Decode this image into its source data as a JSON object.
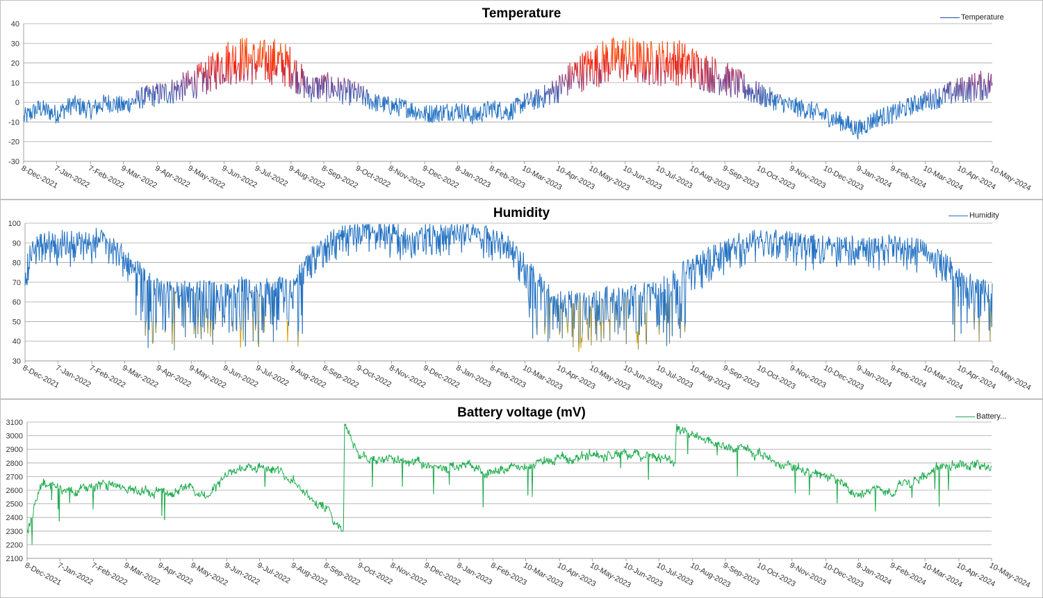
{
  "chart_data": [
    {
      "type": "line",
      "title": "Temperature",
      "legend": "Temperature",
      "legend_position": "top-right",
      "xlabel": "",
      "ylabel": "",
      "ylim": [
        -30,
        40
      ],
      "yticks": [
        -30,
        -20,
        -10,
        0,
        10,
        20,
        30,
        40
      ],
      "grid": true,
      "x_tick_labels": [
        "8-Dec-2021",
        "7-Jan-2022",
        "7-Feb-2022",
        "9-Mar-2022",
        "9-Apr-2022",
        "9-May-2022",
        "9-Jun-2022",
        "9-Jul-2022",
        "9-Aug-2022",
        "8-Sep-2022",
        "9-Oct-2022",
        "8-Nov-2022",
        "9-Dec-2022",
        "8-Jan-2023",
        "8-Feb-2023",
        "10-Mar-2023",
        "10-Apr-2023",
        "10-May-2023",
        "10-Jun-2023",
        "10-Jul-2023",
        "10-Aug-2023",
        "9-Sep-2023",
        "10-Oct-2023",
        "9-Nov-2023",
        "10-Dec-2023",
        "9-Jan-2024",
        "9-Feb-2024",
        "10-Mar-2024",
        "10-Apr-2024",
        "10-May-2024"
      ],
      "color_scale": {
        "low_value": 0,
        "high_value": 20,
        "low_color": "#1f6fc1",
        "mid_color": "#7a3c8a",
        "high_color": "#ff1a00",
        "peak_color": "#e8a317"
      },
      "series": [
        {
          "name": "Temperature",
          "color": "#1f4e9e",
          "x": [
            "2021-12-08",
            "2021-12-22",
            "2022-01-07",
            "2022-01-22",
            "2022-02-07",
            "2022-02-22",
            "2022-03-09",
            "2022-03-24",
            "2022-04-09",
            "2022-04-24",
            "2022-05-09",
            "2022-05-24",
            "2022-06-09",
            "2022-06-24",
            "2022-07-09",
            "2022-07-24",
            "2022-08-09",
            "2022-08-24",
            "2022-09-08",
            "2022-09-24",
            "2022-10-09",
            "2022-10-24",
            "2022-11-08",
            "2022-11-24",
            "2022-12-09",
            "2022-12-24",
            "2023-01-08",
            "2023-01-24",
            "2023-02-08",
            "2023-02-24",
            "2023-03-10",
            "2023-03-25",
            "2023-04-10",
            "2023-04-25",
            "2023-05-10",
            "2023-05-25",
            "2023-06-10",
            "2023-06-25",
            "2023-07-10",
            "2023-07-25",
            "2023-08-10",
            "2023-08-25",
            "2023-09-09",
            "2023-09-25",
            "2023-10-10",
            "2023-10-25",
            "2023-11-09",
            "2023-11-25",
            "2023-12-10",
            "2023-12-25",
            "2024-01-09",
            "2024-01-25",
            "2024-02-09",
            "2024-02-25",
            "2024-03-10",
            "2024-03-25",
            "2024-04-10",
            "2024-04-25",
            "2024-05-10"
          ],
          "values": [
            -8,
            -3,
            -6,
            -1,
            -4,
            0,
            -2,
            2,
            4,
            6,
            9,
            13,
            20,
            22,
            20,
            21,
            18,
            7,
            8,
            6,
            4,
            0,
            -2,
            -3,
            -6,
            -5,
            -4,
            -7,
            -3,
            -5,
            0,
            2,
            7,
            14,
            18,
            21,
            22,
            20,
            20,
            21,
            18,
            15,
            12,
            8,
            4,
            1,
            -2,
            -4,
            -7,
            -10,
            -14,
            -8,
            -6,
            -2,
            1,
            3,
            6,
            8,
            9
          ]
        }
      ]
    },
    {
      "type": "line",
      "title": "Humidity",
      "legend": "Humidity",
      "legend_position": "top-right",
      "xlabel": "",
      "ylabel": "",
      "ylim": [
        30,
        100
      ],
      "yticks": [
        30,
        40,
        50,
        60,
        70,
        80,
        90,
        100
      ],
      "grid": true,
      "x_tick_labels": [
        "8-Dec-2021",
        "7-Jan-2022",
        "7-Feb-2022",
        "9-Mar-2022",
        "9-Apr-2022",
        "9-May-2022",
        "9-Jun-2022",
        "9-Jul-2022",
        "9-Aug-2022",
        "8-Sep-2022",
        "9-Oct-2022",
        "8-Nov-2022",
        "9-Dec-2022",
        "8-Jan-2023",
        "8-Feb-2023",
        "10-Mar-2023",
        "10-Apr-2023",
        "10-May-2023",
        "10-Jun-2023",
        "10-Jul-2023",
        "10-Aug-2023",
        "9-Sep-2023",
        "10-Oct-2023",
        "9-Nov-2023",
        "10-Dec-2023",
        "9-Jan-2024",
        "9-Feb-2024",
        "10-Mar-2024",
        "10-Apr-2024",
        "10-May-2024"
      ],
      "color_scale": {
        "threshold": 50,
        "low_color": "#d8a000",
        "high_color": "#1f6fc1"
      },
      "series": [
        {
          "name": "Humidity",
          "color": "#1f6fc1",
          "x": [
            "2021-12-08",
            "2021-12-22",
            "2022-01-07",
            "2022-01-22",
            "2022-02-07",
            "2022-02-22",
            "2022-03-09",
            "2022-03-24",
            "2022-04-09",
            "2022-04-24",
            "2022-05-09",
            "2022-05-24",
            "2022-06-09",
            "2022-06-24",
            "2022-07-09",
            "2022-07-24",
            "2022-08-09",
            "2022-08-24",
            "2022-09-08",
            "2022-09-24",
            "2022-10-09",
            "2022-10-24",
            "2022-11-08",
            "2022-11-24",
            "2022-12-09",
            "2022-12-24",
            "2023-01-08",
            "2023-01-24",
            "2023-02-08",
            "2023-02-24",
            "2023-03-10",
            "2023-03-25",
            "2023-04-10",
            "2023-04-25",
            "2023-05-10",
            "2023-05-25",
            "2023-06-10",
            "2023-06-25",
            "2023-07-10",
            "2023-07-25",
            "2023-08-10",
            "2023-08-25",
            "2023-09-09",
            "2023-09-25",
            "2023-10-10",
            "2023-10-25",
            "2023-11-09",
            "2023-11-25",
            "2023-12-10",
            "2023-12-25",
            "2024-01-09",
            "2024-01-25",
            "2024-02-09",
            "2024-02-25",
            "2024-03-10",
            "2024-03-25",
            "2024-04-10",
            "2024-04-25",
            "2024-05-10"
          ],
          "values": [
            78,
            88,
            89,
            88,
            90,
            89,
            80,
            72,
            65,
            62,
            64,
            63,
            62,
            65,
            62,
            66,
            63,
            80,
            88,
            92,
            94,
            95,
            93,
            90,
            92,
            92,
            94,
            93,
            90,
            86,
            76,
            66,
            58,
            58,
            60,
            60,
            60,
            62,
            63,
            70,
            76,
            80,
            85,
            88,
            90,
            89,
            88,
            87,
            86,
            86,
            86,
            85,
            87,
            86,
            84,
            80,
            70,
            65,
            62
          ]
        }
      ]
    },
    {
      "type": "line",
      "title": "Battery voltage (mV)",
      "legend": "Battery...",
      "legend_position": "top-right",
      "xlabel": "",
      "ylabel": "",
      "ylim": [
        2100,
        3100
      ],
      "yticks": [
        2100,
        2200,
        2300,
        2400,
        2500,
        2600,
        2700,
        2800,
        2900,
        3000,
        3100
      ],
      "grid": true,
      "x_tick_labels": [
        "8-Dec-2021",
        "7-Jan-2022",
        "7-Feb-2022",
        "9-Mar-2022",
        "9-Apr-2022",
        "9-May-2022",
        "9-Jun-2022",
        "9-Jul-2022",
        "9-Aug-2022",
        "8-Sep-2022",
        "9-Oct-2022",
        "8-Nov-2022",
        "9-Dec-2022",
        "8-Jan-2023",
        "8-Feb-2023",
        "10-Mar-2023",
        "10-Apr-2023",
        "10-May-2023",
        "10-Jun-2023",
        "10-Jul-2023",
        "10-Aug-2023",
        "9-Sep-2023",
        "10-Oct-2023",
        "9-Nov-2023",
        "10-Dec-2023",
        "9-Jan-2024",
        "9-Feb-2024",
        "10-Mar-2024",
        "10-Apr-2024",
        "10-May-2024"
      ],
      "series": [
        {
          "name": "Battery...",
          "color": "#1aaa4a",
          "x": [
            "2021-12-08",
            "2021-12-22",
            "2022-01-07",
            "2022-01-22",
            "2022-02-07",
            "2022-02-22",
            "2022-03-09",
            "2022-03-24",
            "2022-04-09",
            "2022-04-24",
            "2022-05-09",
            "2022-05-24",
            "2022-06-09",
            "2022-06-24",
            "2022-07-09",
            "2022-07-24",
            "2022-08-09",
            "2022-08-24",
            "2022-09-08",
            "2022-09-24",
            "2022-09-25",
            "2022-10-09",
            "2022-10-24",
            "2022-11-08",
            "2022-11-24",
            "2022-12-09",
            "2022-12-24",
            "2023-01-08",
            "2023-01-24",
            "2023-02-08",
            "2023-02-24",
            "2023-03-10",
            "2023-03-25",
            "2023-04-10",
            "2023-04-25",
            "2023-05-10",
            "2023-05-25",
            "2023-06-10",
            "2023-06-25",
            "2023-07-10",
            "2023-07-25",
            "2023-07-26",
            "2023-08-10",
            "2023-08-25",
            "2023-09-09",
            "2023-09-25",
            "2023-10-10",
            "2023-10-25",
            "2023-11-09",
            "2023-11-25",
            "2023-12-10",
            "2023-12-25",
            "2024-01-09",
            "2024-01-25",
            "2024-02-09",
            "2024-02-25",
            "2024-03-10",
            "2024-03-25",
            "2024-04-10",
            "2024-04-25",
            "2024-05-10"
          ],
          "values": [
            2300,
            2650,
            2620,
            2600,
            2650,
            2640,
            2600,
            2610,
            2600,
            2620,
            2600,
            2570,
            2700,
            2780,
            2780,
            2760,
            2700,
            2560,
            2450,
            2320,
            3080,
            2870,
            2830,
            2810,
            2790,
            2770,
            2760,
            2760,
            2770,
            2750,
            2770,
            2760,
            2800,
            2820,
            2840,
            2880,
            2860,
            2870,
            2850,
            2840,
            2810,
            3070,
            3010,
            2960,
            2950,
            2900,
            2860,
            2830,
            2760,
            2730,
            2700,
            2650,
            2560,
            2640,
            2600,
            2660,
            2700,
            2730,
            2760,
            2780,
            2790
          ]
        }
      ]
    }
  ]
}
